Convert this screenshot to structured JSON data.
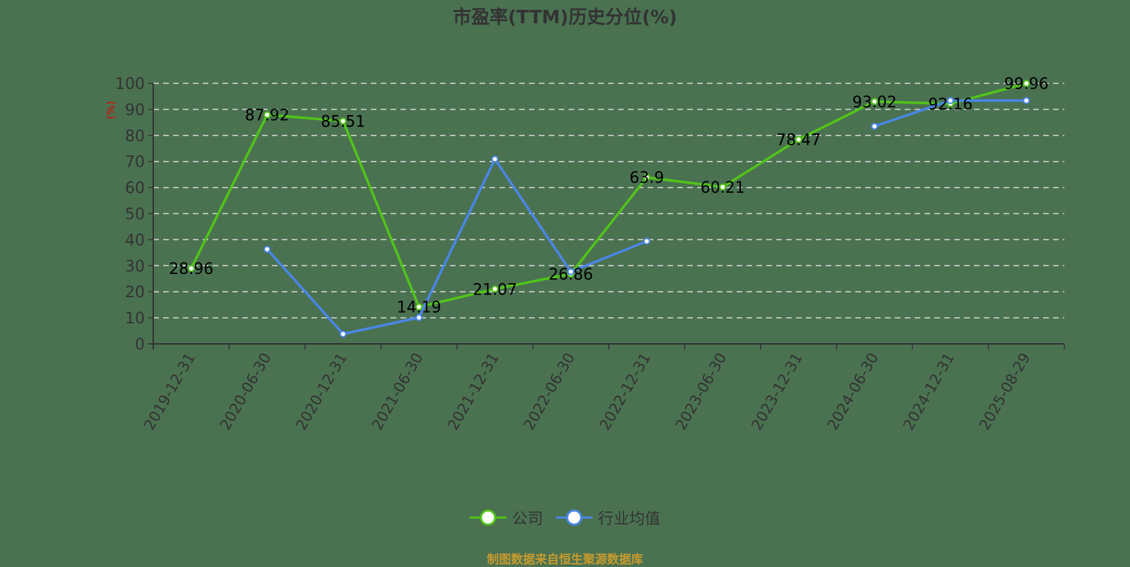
{
  "title": "市盈率(TTM)历史分位(%)",
  "footer": "制图数据来自恒生聚源数据库",
  "legend": [
    {
      "label": "公司",
      "color": "#52c41a"
    },
    {
      "label": "行业均值",
      "color": "#4a86e8"
    }
  ],
  "chart_data": {
    "type": "line",
    "title": "市盈率(TTM)历史分位(%)",
    "xlabel": "",
    "ylabel": "(%)",
    "ylim": [
      0,
      100
    ],
    "yticks": [
      0,
      10,
      20,
      30,
      40,
      50,
      60,
      70,
      80,
      90,
      100
    ],
    "grid": true,
    "legend_position": "bottom",
    "categories": [
      "2019-12-31",
      "2020-06-30",
      "2020-12-31",
      "2021-06-30",
      "2021-12-31",
      "2022-06-30",
      "2022-12-31",
      "2023-06-30",
      "2023-12-31",
      "2024-06-30",
      "2024-12-31",
      "2025-08-29"
    ],
    "series": [
      {
        "name": "公司",
        "color": "#52c41a",
        "show_labels": true,
        "values": [
          28.96,
          87.92,
          85.51,
          14.19,
          21.07,
          26.86,
          63.9,
          60.21,
          78.47,
          93.02,
          92.16,
          99.96
        ]
      },
      {
        "name": "行业均值",
        "color": "#4a86e8",
        "show_labels": false,
        "values": [
          null,
          36.3,
          3.8,
          10.1,
          70.9,
          27.7,
          39.4,
          null,
          null,
          83.5,
          93.4,
          93.4
        ]
      }
    ]
  }
}
